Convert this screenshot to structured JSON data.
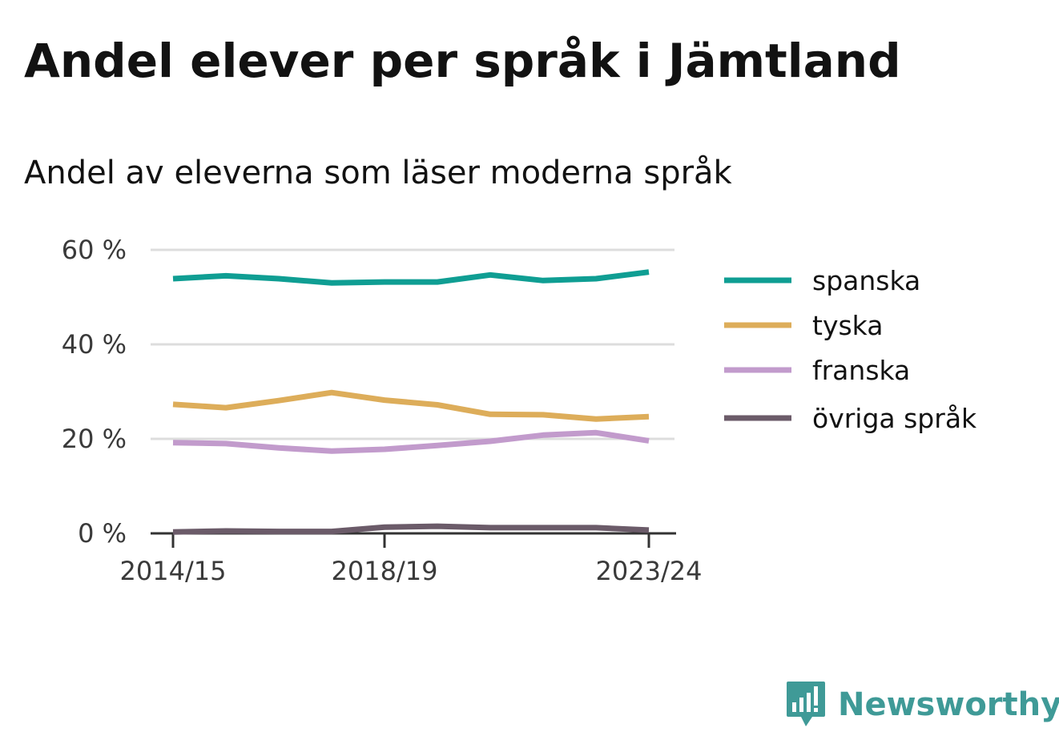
{
  "title": "Andel elever per språk i Jämtland",
  "subtitle": "Andel av eleverna som läser moderna språk",
  "brand": {
    "name": "Newsworthy",
    "icon": "newsworthy-logo-icon",
    "color": "#3f9a97"
  },
  "chart_data": {
    "type": "line",
    "title": "Andel elever per språk i Jämtland",
    "subtitle": "Andel av eleverna som läser moderna språk",
    "xlabel": "",
    "ylabel": "",
    "x": [
      "2014/15",
      "2015/16",
      "2016/17",
      "2017/18",
      "2018/19",
      "2019/20",
      "2020/21",
      "2021/22",
      "2022/23",
      "2023/24"
    ],
    "x_tick_labels": [
      "2014/15",
      "2018/19",
      "2023/24"
    ],
    "ylim": [
      0,
      60
    ],
    "y_ticks": [
      0,
      20,
      40,
      60
    ],
    "y_tick_labels": [
      "0 %",
      "20 %",
      "40 %",
      "60 %"
    ],
    "grid": "horizontal",
    "legend_position": "right",
    "series": [
      {
        "name": "spanska",
        "color": "#0f9e93",
        "values": [
          53.9,
          54.5,
          53.9,
          53.0,
          53.2,
          53.2,
          54.7,
          53.5,
          53.9,
          55.3
        ]
      },
      {
        "name": "tyska",
        "color": "#ddad5a",
        "values": [
          27.3,
          26.6,
          28.1,
          29.8,
          28.2,
          27.2,
          25.2,
          25.1,
          24.2,
          24.7
        ]
      },
      {
        "name": "franska",
        "color": "#c29bcc",
        "values": [
          19.2,
          19.0,
          18.1,
          17.4,
          17.8,
          18.6,
          19.5,
          20.8,
          21.3,
          19.6
        ]
      },
      {
        "name": "övriga språk",
        "color": "#6b5b69",
        "values": [
          0.3,
          0.5,
          0.4,
          0.4,
          1.3,
          1.5,
          1.2,
          1.2,
          1.2,
          0.7
        ]
      }
    ]
  }
}
